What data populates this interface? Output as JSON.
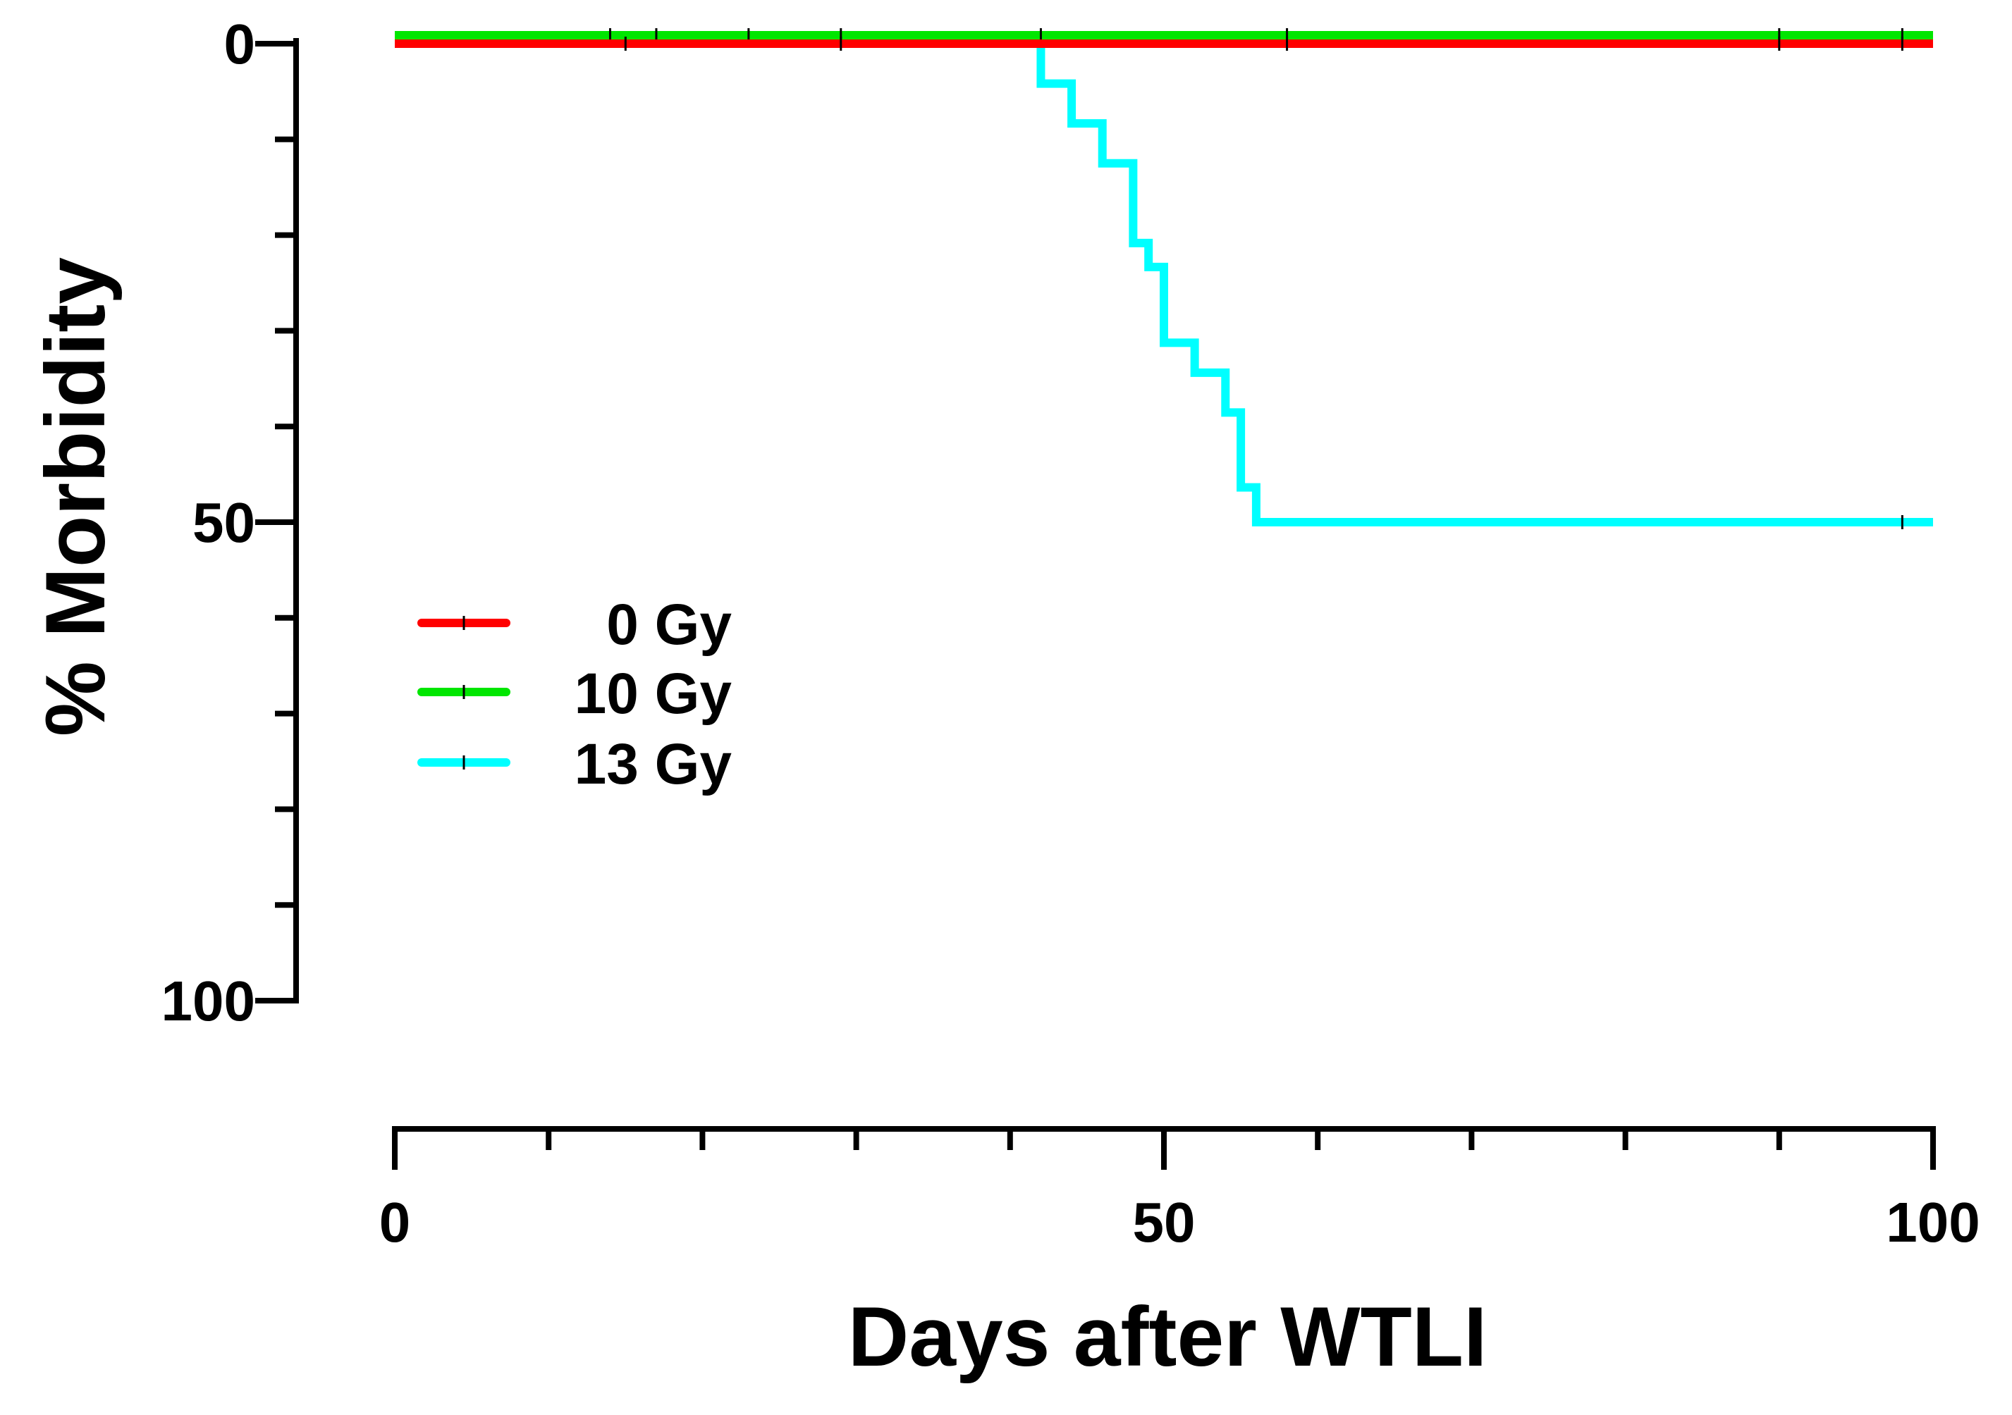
{
  "chart_data": {
    "type": "line",
    "step": true,
    "xlabel": "Days after WTLI",
    "ylabel": "% Morbidity",
    "xlim": [
      0,
      100
    ],
    "ylim": [
      0,
      100
    ],
    "y_inverted": true,
    "x_ticks": [
      0,
      50,
      100
    ],
    "y_ticks": [
      0,
      50,
      100
    ],
    "x_minor_ticks": [
      10,
      20,
      30,
      40,
      60,
      70,
      80,
      90
    ],
    "y_minor_ticks": [
      10,
      20,
      30,
      40,
      60,
      70,
      80,
      90
    ],
    "grid": false,
    "legend_position": "middle-left",
    "series": [
      {
        "name": "0 Gy",
        "color": "#ff0000",
        "x": [
          0,
          100
        ],
        "y": [
          0,
          0
        ],
        "censor_x": [
          15,
          29,
          58,
          90,
          98
        ]
      },
      {
        "name": "10 Gy",
        "color": "#00e600",
        "x": [
          0,
          100
        ],
        "y": [
          0,
          0
        ],
        "censor_x": [
          14,
          17,
          23,
          29,
          42,
          58,
          90,
          98
        ]
      },
      {
        "name": "13 Gy",
        "color": "#00ffff",
        "x": [
          0,
          42,
          44,
          46,
          48,
          49,
          50,
          52,
          54,
          55,
          56,
          100
        ],
        "y": [
          0,
          4.17,
          8.33,
          12.5,
          20.83,
          23.33,
          31.25,
          34.38,
          38.54,
          46.36,
          50,
          50
        ],
        "censor_x": [
          98
        ]
      }
    ]
  }
}
